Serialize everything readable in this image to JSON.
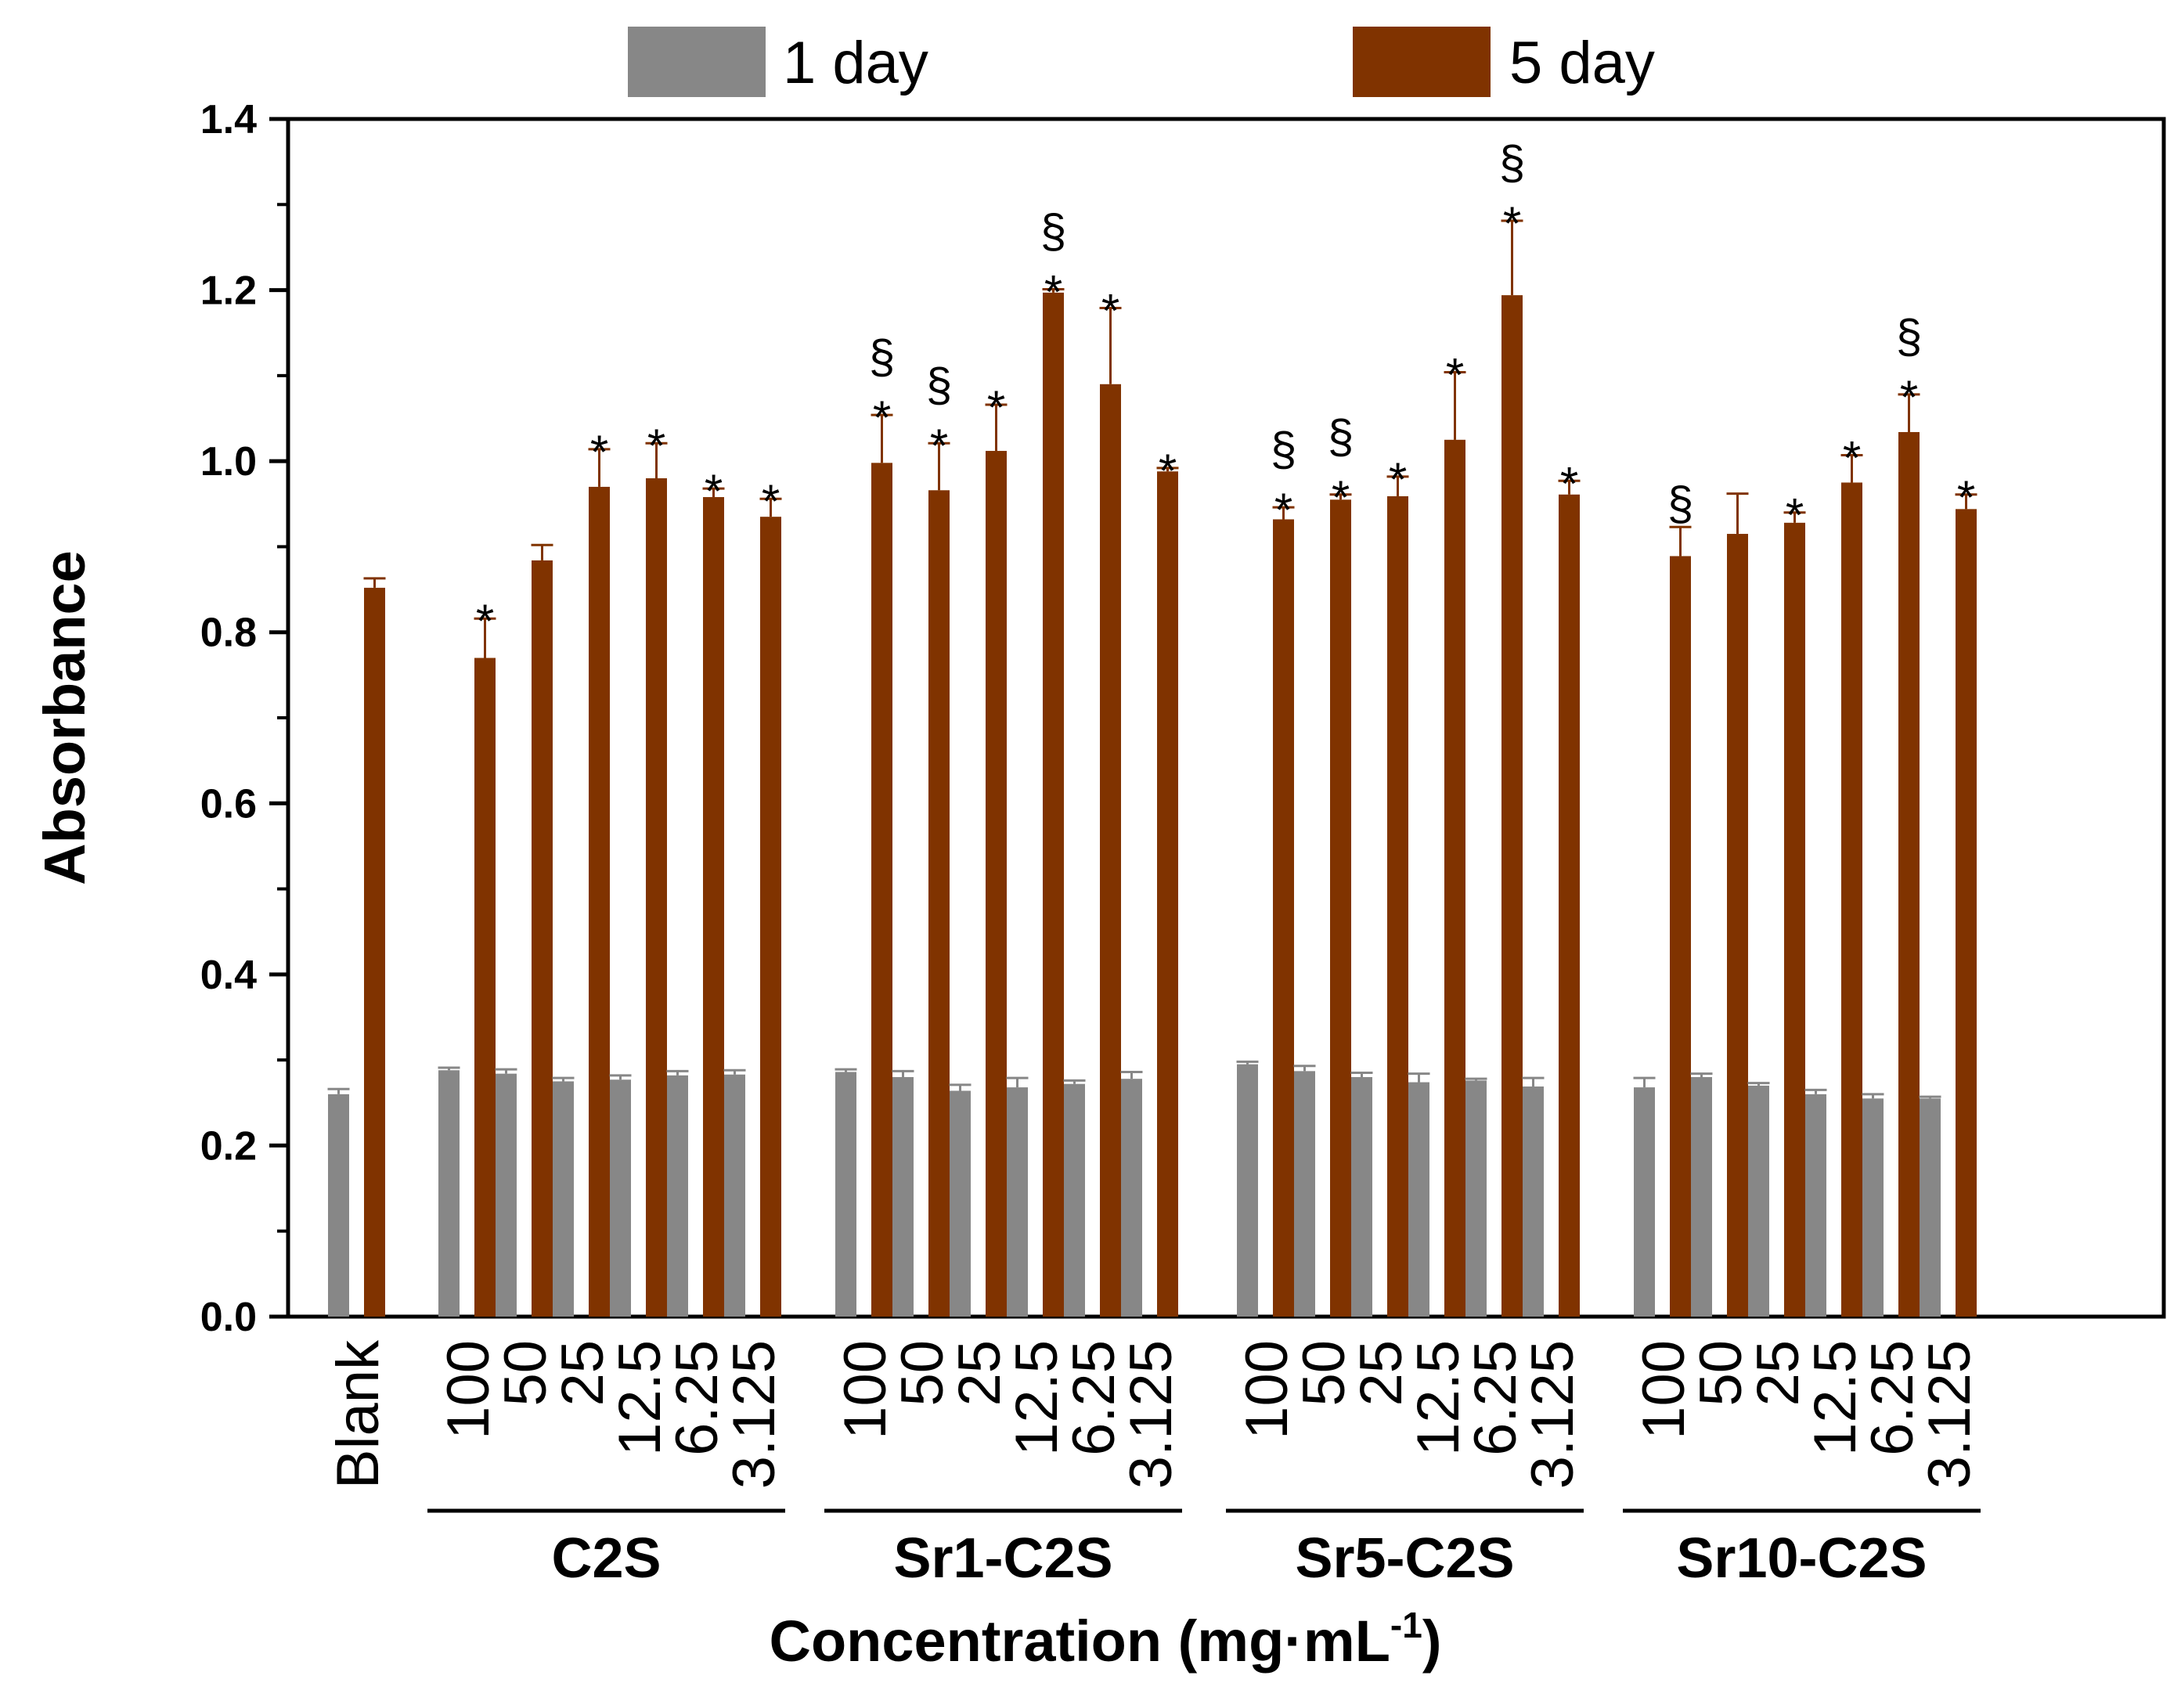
{
  "chart_data": {
    "type": "bar",
    "title": "",
    "xlabel": "Concentration (mg·mL",
    "xlabel_sup": "-1",
    "xlabel_close": ")",
    "ylabel": "Absorbance",
    "ylim": [
      0,
      1.4
    ],
    "yticks": [
      "0.0",
      "0.2",
      "0.4",
      "0.6",
      "0.8",
      "1.0",
      "1.2",
      "1.4"
    ],
    "legend_position": "top",
    "groups": [
      {
        "name": "",
        "start": 0,
        "count": 1
      },
      {
        "name": "C2S",
        "start": 1,
        "count": 6
      },
      {
        "name": "Sr1-C2S",
        "start": 7,
        "count": 6
      },
      {
        "name": "Sr5-C2S",
        "start": 13,
        "count": 6
      },
      {
        "name": "Sr10-C2S",
        "start": 19,
        "count": 6
      }
    ],
    "categories": [
      "Blank",
      "100",
      "50",
      "25",
      "12.5",
      "6.25",
      "3.125",
      "100",
      "50",
      "25",
      "12.5",
      "6.25",
      "3.125",
      "100",
      "50",
      "25",
      "12.5",
      "6.25",
      "3.125",
      "100",
      "50",
      "25",
      "12.5",
      "6.25",
      "3.125"
    ],
    "series": [
      {
        "name": "1 day",
        "color": "#878787",
        "values": [
          0.26,
          0.288,
          0.284,
          0.275,
          0.277,
          0.282,
          0.283,
          0.286,
          0.28,
          0.264,
          0.268,
          0.272,
          0.278,
          0.295,
          0.287,
          0.28,
          0.274,
          0.276,
          0.269,
          0.268,
          0.28,
          0.27,
          0.26,
          0.255,
          0.255
        ],
        "errors": [
          0.006,
          0.003,
          0.005,
          0.004,
          0.005,
          0.005,
          0.005,
          0.003,
          0.007,
          0.007,
          0.011,
          0.004,
          0.008,
          0.003,
          0.006,
          0.005,
          0.01,
          0.002,
          0.01,
          0.011,
          0.004,
          0.003,
          0.005,
          0.005,
          0.002
        ]
      },
      {
        "name": "5 day",
        "color": "#803300",
        "values": [
          0.852,
          0.77,
          0.884,
          0.97,
          0.98,
          0.958,
          0.935,
          0.998,
          0.966,
          1.012,
          1.197,
          1.09,
          0.988,
          0.932,
          0.955,
          0.959,
          1.025,
          1.194,
          0.961,
          0.889,
          0.915,
          0.928,
          0.975,
          1.034,
          0.944
        ],
        "errors": [
          0.011,
          0.046,
          0.018,
          0.044,
          0.041,
          0.01,
          0.021,
          0.056,
          0.055,
          0.054,
          0.004,
          0.089,
          0.004,
          0.014,
          0.006,
          0.023,
          0.079,
          0.087,
          0.016,
          0.034,
          0.047,
          0.012,
          0.032,
          0.044,
          0.017
        ],
        "annotations": [
          "",
          "*",
          "",
          "*",
          "*",
          "*",
          "*",
          "*§",
          "*§",
          "*",
          "*§",
          "*",
          "*",
          "*§",
          "*§",
          "*",
          "*",
          "*§",
          "*",
          "§",
          "",
          "*",
          "*",
          "*§",
          "*"
        ]
      }
    ]
  }
}
